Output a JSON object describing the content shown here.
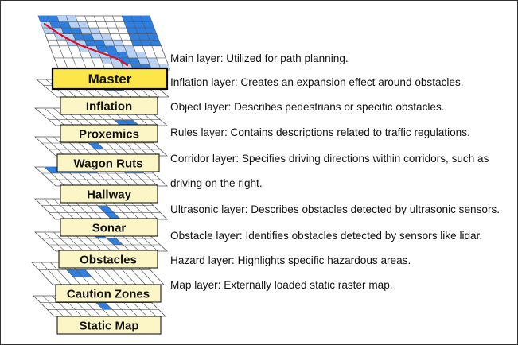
{
  "colors": {
    "label_fill": "#fcf6c6",
    "master_fill": "#fce64a",
    "grid_line": "#555555",
    "cell_blue": "#2f7fe0",
    "cell_light": "#b8d3f6",
    "path_red": "#d8102a"
  },
  "layers": [
    {
      "name": "Master"
    },
    {
      "name": "Inflation"
    },
    {
      "name": "Proxemics"
    },
    {
      "name": "Wagon Ruts"
    },
    {
      "name": "Hallway"
    },
    {
      "name": "Sonar"
    },
    {
      "name": "Obstacles"
    },
    {
      "name": "Caution Zones"
    },
    {
      "name": "Static Map"
    }
  ],
  "descriptions": [
    "Main layer: Utilized for path planning.",
    "Inflation layer: Creates an expansion effect around obstacles.",
    "Object layer: Describes pedestrians or specific obstacles.",
    "Rules layer: Contains descriptions related to traffic regulations.",
    "Corridor layer: Specifies driving directions within corridors, such as",
    "driving on the right.",
    "Ultrasonic layer: Describes obstacles detected by ultrasonic sensors.",
    "Obstacle layer: Identifies obstacles detected by sensors like lidar.",
    "Hazard layer: Highlights specific hazardous areas.",
    "Map layer: Externally loaded static raster map."
  ]
}
